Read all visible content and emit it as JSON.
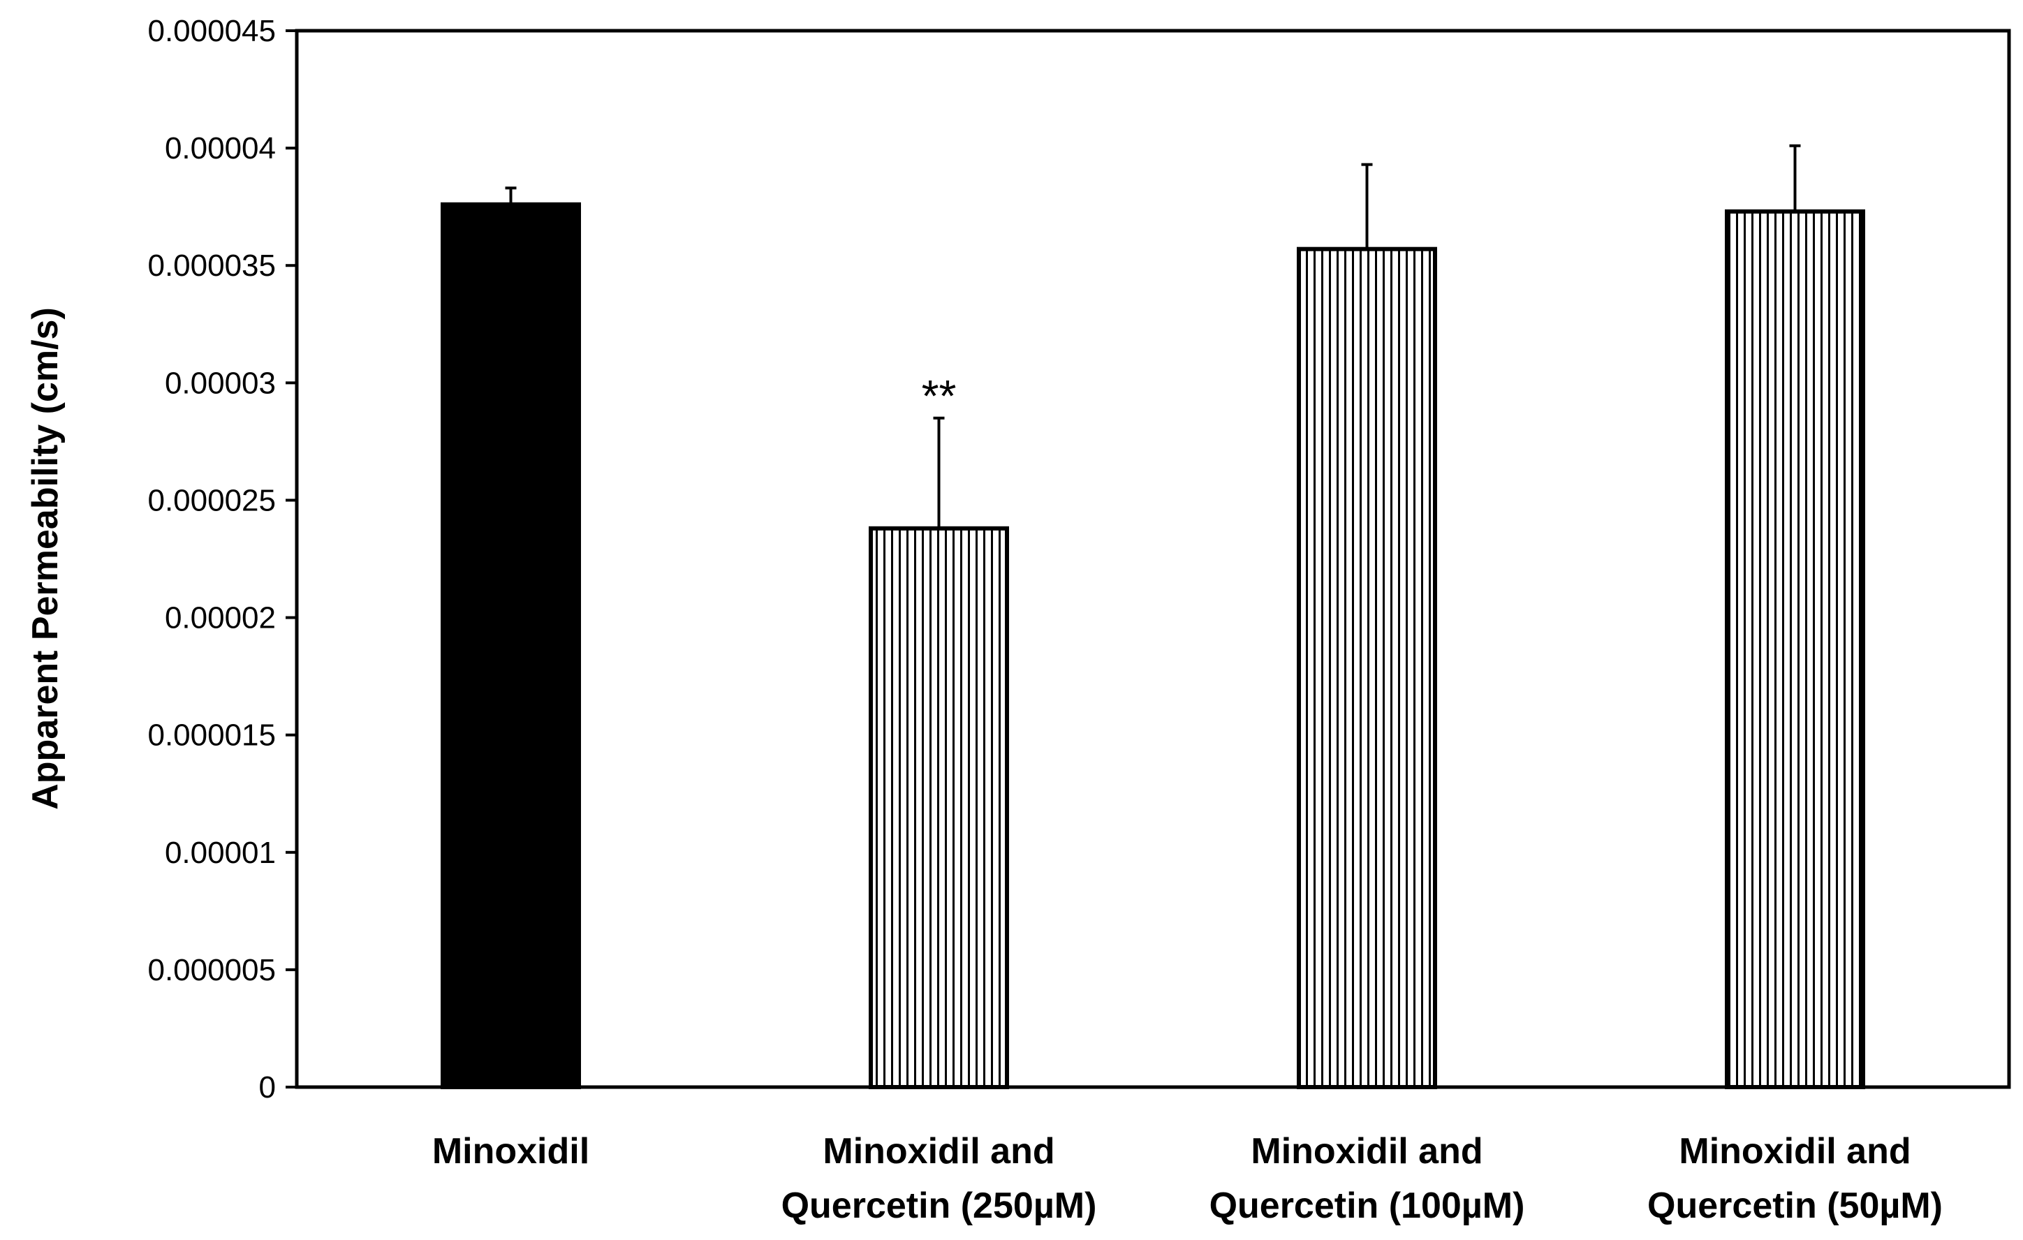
{
  "chart_data": {
    "type": "bar",
    "title": "",
    "xlabel": "",
    "ylabel": "Apparent Permeability (cm/s)",
    "ylim": [
      0,
      4.5e-05
    ],
    "yticks": [
      {
        "value": 0,
        "label": "0"
      },
      {
        "value": 5e-06,
        "label": "0.000005"
      },
      {
        "value": 1e-05,
        "label": "0.00001"
      },
      {
        "value": 1.5e-05,
        "label": "0.000015"
      },
      {
        "value": 2e-05,
        "label": "0.00002"
      },
      {
        "value": 2.5e-05,
        "label": "0.000025"
      },
      {
        "value": 3e-05,
        "label": "0.00003"
      },
      {
        "value": 3.5e-05,
        "label": "0.000035"
      },
      {
        "value": 4e-05,
        "label": "0.00004"
      },
      {
        "value": 4.5e-05,
        "label": "0.000045"
      }
    ],
    "categories": [
      {
        "line1": "Minoxidil",
        "line2": ""
      },
      {
        "line1": "Minoxidil and",
        "line2": "Quercetin (250µM)"
      },
      {
        "line1": "Minoxidil and",
        "line2": "Quercetin (100µM)"
      },
      {
        "line1": "Minoxidil and",
        "line2": "Quercetin (50µM)"
      }
    ],
    "values": [
      3.76e-05,
      2.38e-05,
      3.57e-05,
      3.73e-05
    ],
    "errors": [
      7e-07,
      4.7e-06,
      3.6e-06,
      2.8e-06
    ],
    "fills": [
      "solid",
      "vertical-stripes",
      "vertical-stripes",
      "vertical-stripes"
    ],
    "annotations": [
      "",
      "**",
      "",
      ""
    ],
    "colors": {
      "bar": "#000000",
      "background": "#ffffff",
      "axis": "#000000"
    },
    "grid": false,
    "legend": "none"
  }
}
